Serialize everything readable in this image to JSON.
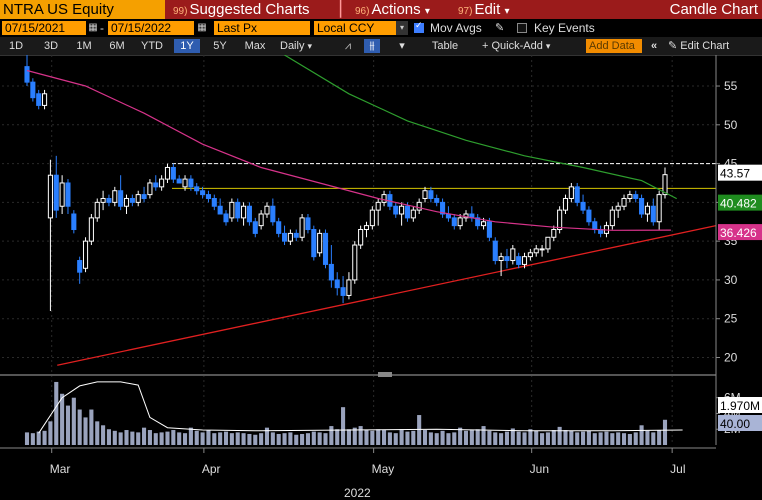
{
  "header": {
    "ticker": "NTRA US Equity",
    "menus": [
      {
        "num": "99)",
        "label": "Suggested Charts"
      },
      {
        "num": "96)",
        "label": "Actions"
      },
      {
        "num": "97)",
        "label": "Edit"
      }
    ],
    "title": "Candle Chart"
  },
  "toolbar": {
    "start_date": "07/15/2021",
    "end_date": "07/15/2022",
    "field": "Last Px",
    "currency": "Local CCY",
    "mov_avgs_label": "Mov Avgs",
    "key_events_label": "Key Events"
  },
  "range_bar": {
    "periods": [
      "1D",
      "3D",
      "1M",
      "6M",
      "YTD",
      "1Y",
      "5Y",
      "Max"
    ],
    "selected_period": "1Y",
    "frequency": "Daily",
    "table_label": "Table",
    "quick_add_label": "Quick-Add",
    "add_data_placeholder": "Add Data",
    "edit_chart_label": "Edit Chart"
  },
  "colors": {
    "up": "#ffffff",
    "down": "#2a7fff",
    "ma_short": "#d6338a",
    "ma_long": "#2e9e2e",
    "trendline": "#e02020",
    "resistance": "#ffffff",
    "level_line": "#d4c400",
    "volume": "#9aa3bd"
  },
  "chart_data": {
    "type": "candlestick",
    "ylim": [
      18,
      59
    ],
    "y_ticks": [
      20,
      25,
      30,
      35,
      40,
      45,
      50,
      55
    ],
    "x_month_labels": [
      "Mar",
      "Apr",
      "May",
      "Jun",
      "Jul"
    ],
    "x_year_label": "2022",
    "candles_ohlc": [
      [
        57.5,
        59.0,
        55.0,
        55.5
      ],
      [
        55.5,
        56.0,
        53.0,
        53.5
      ],
      [
        54.0,
        54.5,
        52.0,
        52.5
      ],
      [
        52.5,
        54.5,
        52.0,
        54.0
      ],
      [
        38.0,
        45.5,
        26.0,
        43.5
      ],
      [
        43.5,
        46.0,
        38.0,
        39.0
      ],
      [
        39.5,
        43.5,
        38.5,
        42.5
      ],
      [
        42.5,
        43.0,
        38.5,
        39.5
      ],
      [
        38.5,
        39.0,
        36.0,
        36.5
      ],
      [
        32.5,
        33.0,
        29.5,
        31.0
      ],
      [
        31.5,
        35.5,
        31.0,
        35.0
      ],
      [
        35.0,
        38.5,
        34.5,
        38.0
      ],
      [
        38.0,
        40.5,
        37.5,
        40.0
      ],
      [
        40.0,
        41.5,
        39.0,
        40.5
      ],
      [
        40.5,
        41.0,
        39.5,
        40.0
      ],
      [
        40.0,
        42.0,
        39.5,
        41.5
      ],
      [
        41.5,
        43.5,
        39.0,
        39.5
      ],
      [
        39.5,
        41.0,
        38.5,
        40.5
      ],
      [
        40.5,
        41.0,
        39.5,
        40.0
      ],
      [
        40.0,
        41.5,
        39.5,
        41.0
      ],
      [
        41.0,
        42.0,
        40.0,
        40.5
      ],
      [
        41.0,
        43.0,
        40.5,
        42.5
      ],
      [
        42.5,
        43.5,
        41.5,
        42.0
      ],
      [
        42.0,
        43.5,
        41.5,
        43.0
      ],
      [
        43.0,
        45.0,
        42.5,
        44.5
      ],
      [
        44.5,
        45.0,
        42.5,
        43.0
      ],
      [
        43.0,
        43.5,
        42.5,
        42.5
      ],
      [
        42.0,
        43.5,
        41.5,
        43.0
      ],
      [
        43.0,
        43.5,
        41.5,
        42.0
      ],
      [
        42.0,
        42.5,
        41.0,
        41.5
      ],
      [
        41.5,
        42.0,
        40.5,
        41.0
      ],
      [
        41.0,
        41.5,
        40.0,
        40.5
      ],
      [
        40.5,
        41.0,
        39.0,
        39.5
      ],
      [
        39.5,
        40.5,
        38.5,
        38.5
      ],
      [
        38.5,
        39.0,
        37.0,
        37.5
      ],
      [
        38.0,
        40.5,
        37.5,
        40.0
      ],
      [
        40.0,
        40.5,
        37.5,
        38.0
      ],
      [
        38.0,
        40.0,
        37.0,
        39.5
      ],
      [
        39.5,
        40.0,
        37.0,
        37.5
      ],
      [
        37.5,
        38.0,
        35.5,
        36.0
      ],
      [
        37.0,
        39.0,
        36.5,
        38.5
      ],
      [
        38.5,
        40.0,
        38.0,
        39.5
      ],
      [
        39.5,
        40.5,
        37.0,
        37.5
      ],
      [
        37.5,
        38.0,
        35.5,
        36.0
      ],
      [
        36.0,
        37.0,
        34.5,
        35.0
      ],
      [
        35.0,
        36.5,
        34.5,
        36.0
      ],
      [
        36.0,
        36.5,
        35.0,
        35.5
      ],
      [
        35.5,
        38.5,
        35.0,
        38.0
      ],
      [
        38.0,
        38.5,
        36.0,
        36.5
      ],
      [
        36.5,
        37.0,
        32.5,
        33.0
      ],
      [
        33.5,
        36.5,
        33.0,
        36.0
      ],
      [
        36.0,
        36.5,
        31.5,
        32.0
      ],
      [
        32.0,
        34.5,
        29.0,
        30.0
      ],
      [
        30.0,
        31.0,
        28.0,
        29.0
      ],
      [
        29.0,
        30.5,
        27.0,
        28.0
      ],
      [
        28.0,
        31.0,
        27.5,
        30.0
      ],
      [
        30.0,
        35.0,
        29.5,
        34.5
      ],
      [
        34.5,
        37.0,
        34.0,
        36.5
      ],
      [
        36.5,
        37.5,
        35.5,
        37.0
      ],
      [
        37.0,
        39.5,
        36.5,
        39.0
      ],
      [
        39.0,
        40.5,
        37.0,
        40.0
      ],
      [
        40.0,
        41.5,
        39.5,
        41.0
      ],
      [
        41.0,
        41.5,
        39.0,
        39.5
      ],
      [
        39.5,
        40.0,
        38.0,
        38.5
      ],
      [
        38.5,
        40.0,
        37.0,
        39.5
      ],
      [
        39.5,
        40.0,
        37.5,
        38.0
      ],
      [
        38.0,
        39.5,
        37.5,
        39.0
      ],
      [
        39.0,
        40.5,
        38.5,
        40.0
      ],
      [
        40.5,
        42.0,
        40.0,
        41.5
      ],
      [
        41.5,
        42.0,
        40.0,
        40.5
      ],
      [
        40.5,
        41.0,
        39.5,
        40.0
      ],
      [
        40.0,
        40.5,
        38.0,
        38.5
      ],
      [
        38.5,
        39.5,
        37.5,
        38.0
      ],
      [
        38.0,
        38.5,
        36.5,
        37.0
      ],
      [
        37.0,
        38.5,
        36.5,
        38.0
      ],
      [
        38.0,
        39.0,
        37.5,
        38.5
      ],
      [
        38.5,
        39.5,
        37.5,
        38.0
      ],
      [
        38.0,
        38.5,
        36.5,
        37.0
      ],
      [
        37.0,
        38.0,
        36.5,
        37.5
      ],
      [
        37.5,
        38.0,
        35.0,
        35.5
      ],
      [
        35.0,
        35.5,
        32.0,
        32.5
      ],
      [
        32.5,
        33.5,
        30.5,
        33.0
      ],
      [
        33.0,
        34.0,
        31.5,
        32.5
      ],
      [
        32.5,
        34.5,
        32.0,
        34.0
      ],
      [
        33.0,
        33.5,
        31.5,
        32.0
      ],
      [
        32.0,
        33.5,
        31.5,
        33.0
      ],
      [
        33.0,
        34.0,
        32.5,
        33.5
      ],
      [
        33.5,
        34.5,
        33.0,
        34.0
      ],
      [
        34.0,
        34.5,
        33.0,
        34.0
      ],
      [
        34.0,
        35.5,
        33.5,
        35.5
      ],
      [
        35.5,
        37.0,
        35.0,
        36.5
      ],
      [
        36.5,
        39.5,
        36.0,
        39.0
      ],
      [
        39.0,
        41.0,
        38.5,
        40.5
      ],
      [
        40.5,
        42.5,
        40.0,
        42.0
      ],
      [
        42.0,
        42.5,
        39.5,
        40.0
      ],
      [
        40.0,
        41.0,
        38.5,
        39.0
      ],
      [
        39.0,
        39.5,
        37.0,
        37.5
      ],
      [
        37.5,
        38.0,
        36.0,
        36.5
      ],
      [
        36.5,
        37.0,
        35.5,
        36.0
      ],
      [
        36.0,
        37.5,
        35.5,
        37.0
      ],
      [
        37.0,
        39.5,
        36.5,
        39.0
      ],
      [
        39.0,
        40.0,
        38.0,
        39.5
      ],
      [
        39.5,
        41.0,
        39.0,
        40.5
      ],
      [
        40.5,
        41.5,
        40.0,
        41.0
      ],
      [
        41.0,
        41.5,
        40.0,
        40.5
      ],
      [
        40.5,
        41.0,
        38.0,
        38.5
      ],
      [
        38.5,
        40.0,
        37.5,
        39.5
      ],
      [
        39.5,
        40.5,
        37.0,
        37.5
      ],
      [
        37.5,
        41.5,
        36.5,
        41.0
      ],
      [
        41.0,
        44.5,
        40.5,
        43.57
      ]
    ],
    "volume_millions": [
      1.6,
      1.5,
      1.7,
      1.8,
      3.0,
      8.0,
      6.5,
      5.0,
      6.0,
      4.5,
      3.5,
      4.5,
      3.0,
      2.5,
      2.0,
      1.8,
      1.6,
      1.9,
      1.7,
      1.6,
      2.2,
      1.9,
      1.5,
      1.6,
      1.7,
      1.9,
      1.6,
      1.5,
      2.2,
      1.8,
      1.6,
      1.9,
      1.5,
      1.6,
      1.7,
      1.5,
      1.6,
      1.5,
      1.4,
      1.3,
      1.5,
      2.2,
      1.6,
      1.4,
      1.5,
      1.6,
      1.3,
      1.4,
      1.5,
      1.7,
      1.6,
      1.5,
      2.4,
      2.0,
      4.8,
      2.0,
      2.2,
      2.4,
      1.9,
      1.8,
      2.0,
      1.9,
      1.6,
      1.5,
      2.0,
      1.7,
      1.8,
      3.8,
      1.9,
      1.6,
      1.5,
      1.8,
      1.5,
      1.6,
      2.2,
      1.8,
      1.9,
      2.0,
      2.4,
      1.8,
      1.6,
      1.5,
      1.7,
      2.1,
      1.7,
      1.6,
      2.0,
      1.8,
      1.5,
      1.6,
      1.9,
      2.3,
      1.9,
      1.8,
      1.6,
      1.7,
      1.8,
      1.5,
      1.6,
      1.7,
      1.5,
      1.6,
      1.5,
      1.4,
      1.6,
      2.5,
      1.8,
      1.6,
      1.9,
      3.2
    ],
    "volume_y_ticks": [
      "2M",
      "4M",
      "6M"
    ],
    "moving_average_short": [
      [
        0,
        57.0
      ],
      [
        10,
        55.0
      ],
      [
        20,
        51.5
      ],
      [
        30,
        47.5
      ],
      [
        40,
        44.5
      ],
      [
        50,
        42.5
      ],
      [
        60,
        40.5
      ],
      [
        70,
        38.8
      ],
      [
        80,
        37.5
      ],
      [
        90,
        36.8
      ],
      [
        100,
        36.4
      ],
      [
        110,
        36.426
      ]
    ],
    "moving_average_long": [
      [
        44,
        59.0
      ],
      [
        55,
        54.0
      ],
      [
        65,
        50.5
      ],
      [
        75,
        48.0
      ],
      [
        85,
        46.0
      ],
      [
        95,
        44.5
      ],
      [
        105,
        42.8
      ],
      [
        111,
        40.482
      ]
    ],
    "trendline": [
      [
        12,
        19.0
      ],
      [
        112,
        37.0
      ]
    ],
    "resistance_level": 45.0,
    "level_line": 41.8,
    "volume_moving_average": [
      [
        2,
        1.5
      ],
      [
        6,
        6.0
      ],
      [
        9,
        7.5
      ],
      [
        12,
        8.0
      ],
      [
        16,
        8.0
      ],
      [
        19,
        7.6
      ],
      [
        21,
        3.5
      ],
      [
        24,
        2.2
      ],
      [
        30,
        1.9
      ],
      [
        40,
        1.8
      ],
      [
        55,
        1.9
      ],
      [
        70,
        2.0
      ],
      [
        85,
        1.8
      ],
      [
        100,
        1.8
      ],
      [
        112,
        1.9
      ]
    ],
    "price_labels": [
      {
        "label": "43.57",
        "value": 43.57,
        "bg": "#ffffff",
        "fg": "#000000"
      },
      {
        "label": "40.482",
        "value": 40.482,
        "bg": "#1f8c1f",
        "fg": "#ffffff"
      },
      {
        "label": "36.426",
        "value": 36.426,
        "bg": "#d6338a",
        "fg": "#ffffff"
      }
    ],
    "volume_labels": [
      {
        "label": "1.970M",
        "value": 1.97,
        "bg": "#ffffff",
        "fg": "#000000"
      },
      {
        "label": "40.00",
        "value": 0.4,
        "bg": "#a9b4d6",
        "fg": "#000000"
      }
    ]
  }
}
